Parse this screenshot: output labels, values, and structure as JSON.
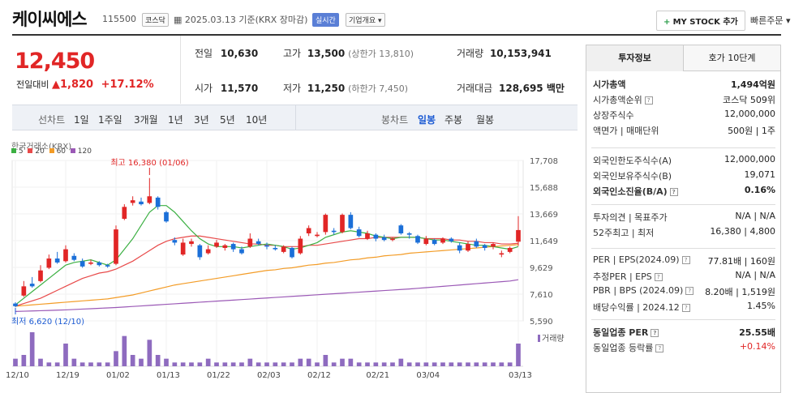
{
  "header": {
    "title": "케이씨에스",
    "code": "115500",
    "market": "코스닥",
    "date_label": "2025.03.13 기준(KRX 장마감)",
    "realtime": "실시간",
    "overview": "기업개요",
    "mystock": "MY STOCK 추가",
    "quick_order": "빠른주문"
  },
  "quote": {
    "price": "12,450",
    "change_label": "전일대비",
    "change": "1,820",
    "change_pct": "+17.12%",
    "prev_label": "전일",
    "prev": "10,630",
    "high_label": "고가",
    "high": "13,500",
    "upper_limit": "(상한가 13,810)",
    "volume_label": "거래량",
    "volume": "10,153,941",
    "open_label": "시가",
    "open": "11,570",
    "low_label": "저가",
    "low": "11,250",
    "lower_limit": "(하한가 7,450)",
    "amount_label": "거래대금",
    "amount": "128,695 백만"
  },
  "periods": {
    "line_label": "선차트",
    "line": [
      "1일",
      "1주일",
      "3개월",
      "1년",
      "3년",
      "5년",
      "10년"
    ],
    "candle_label": "봉차트",
    "candle": [
      "일봉",
      "주봉",
      "월봉"
    ],
    "active_candle": "일봉"
  },
  "chart_legend": {
    "source": "한국거래소(KRX)",
    "ma": [
      "5",
      "20",
      "60",
      "120"
    ],
    "ma_colors": [
      "#3cb043",
      "#e84a4a",
      "#f39c27",
      "#9b59b6"
    ],
    "volume_label": "거래량"
  },
  "chart_data": {
    "type": "candlestick",
    "y_ticks": [
      "17,708",
      "15,688",
      "13,669",
      "11,649",
      "9,629",
      "7,610",
      "5,590"
    ],
    "ylim": [
      5590,
      17708
    ],
    "x_ticks": [
      "12/10",
      "12/19",
      "01/02",
      "01/13",
      "01/22",
      "02/03",
      "02/12",
      "02/21",
      "03/04",
      "03/13"
    ],
    "annotations": {
      "high": "최고 16,380 (01/06)",
      "low": "최저 6,620 (12/10)"
    },
    "candles": [
      {
        "o": 6900,
        "c": 6700,
        "h": 7000,
        "l": 6620
      },
      {
        "o": 7500,
        "c": 8200,
        "h": 8600,
        "l": 7400
      },
      {
        "o": 8400,
        "c": 8200,
        "h": 8900,
        "l": 8100
      },
      {
        "o": 8600,
        "c": 9400,
        "h": 9800,
        "l": 8500
      },
      {
        "o": 9600,
        "c": 10300,
        "h": 10600,
        "l": 9500
      },
      {
        "o": 10300,
        "c": 10000,
        "h": 10800,
        "l": 9900
      },
      {
        "o": 10100,
        "c": 11000,
        "h": 11300,
        "l": 10000
      },
      {
        "o": 10500,
        "c": 10200,
        "h": 10700,
        "l": 10100
      },
      {
        "o": 10100,
        "c": 9700,
        "h": 10300,
        "l": 9600
      },
      {
        "o": 9900,
        "c": 10000,
        "h": 10200,
        "l": 9800
      },
      {
        "o": 10000,
        "c": 9800,
        "h": 10100,
        "l": 9700
      },
      {
        "o": 9800,
        "c": 9700,
        "h": 9900,
        "l": 9600
      },
      {
        "o": 9900,
        "c": 12500,
        "h": 12800,
        "l": 9800
      },
      {
        "o": 13300,
        "c": 14200,
        "h": 14400,
        "l": 13200
      },
      {
        "o": 14500,
        "c": 14700,
        "h": 15000,
        "l": 14300
      },
      {
        "o": 14600,
        "c": 14400,
        "h": 14900,
        "l": 14300
      },
      {
        "o": 14500,
        "c": 15000,
        "h": 16380,
        "l": 14400
      },
      {
        "o": 14900,
        "c": 14200,
        "h": 15000,
        "l": 14000
      },
      {
        "o": 13800,
        "c": 13100,
        "h": 13900,
        "l": 13000
      },
      {
        "o": 11700,
        "c": 11500,
        "h": 11900,
        "l": 11300
      },
      {
        "o": 10600,
        "c": 11500,
        "h": 11800,
        "l": 10500
      },
      {
        "o": 11400,
        "c": 11600,
        "h": 11800,
        "l": 11200
      },
      {
        "o": 11300,
        "c": 10400,
        "h": 11400,
        "l": 10200
      },
      {
        "o": 10700,
        "c": 11000,
        "h": 11300,
        "l": 10600
      },
      {
        "o": 11200,
        "c": 11500,
        "h": 11700,
        "l": 11100
      },
      {
        "o": 11100,
        "c": 11300,
        "h": 11400,
        "l": 10900
      },
      {
        "o": 11400,
        "c": 11000,
        "h": 11500,
        "l": 10800
      },
      {
        "o": 11000,
        "c": 10700,
        "h": 11200,
        "l": 10600
      },
      {
        "o": 11200,
        "c": 11800,
        "h": 12200,
        "l": 11100
      },
      {
        "o": 11600,
        "c": 11400,
        "h": 11800,
        "l": 11300
      },
      {
        "o": 11300,
        "c": 11200,
        "h": 11500,
        "l": 11000
      },
      {
        "o": 11100,
        "c": 11000,
        "h": 11300,
        "l": 10900
      },
      {
        "o": 10800,
        "c": 11200,
        "h": 11300,
        "l": 10700
      },
      {
        "o": 11100,
        "c": 10400,
        "h": 11200,
        "l": 10300
      },
      {
        "o": 10700,
        "c": 11800,
        "h": 12000,
        "l": 10600
      },
      {
        "o": 12200,
        "c": 12600,
        "h": 12800,
        "l": 12000
      },
      {
        "o": 12000,
        "c": 12100,
        "h": 12300,
        "l": 11900
      },
      {
        "o": 12300,
        "c": 13600,
        "h": 13700,
        "l": 12100
      },
      {
        "o": 12400,
        "c": 12300,
        "h": 12600,
        "l": 12100
      },
      {
        "o": 12300,
        "c": 13600,
        "h": 13700,
        "l": 12200
      },
      {
        "o": 13600,
        "c": 12600,
        "h": 13800,
        "l": 12500
      },
      {
        "o": 12500,
        "c": 12000,
        "h": 12700,
        "l": 11900
      },
      {
        "o": 11800,
        "c": 12200,
        "h": 12400,
        "l": 11700
      },
      {
        "o": 12100,
        "c": 11800,
        "h": 12200,
        "l": 11600
      },
      {
        "o": 11900,
        "c": 11700,
        "h": 12100,
        "l": 11600
      },
      {
        "o": 11700,
        "c": 11800,
        "h": 11900,
        "l": 11600
      },
      {
        "o": 12800,
        "c": 12200,
        "h": 12900,
        "l": 12100
      },
      {
        "o": 12200,
        "c": 12100,
        "h": 12300,
        "l": 11800
      },
      {
        "o": 12000,
        "c": 11500,
        "h": 12100,
        "l": 11400
      },
      {
        "o": 11400,
        "c": 11800,
        "h": 12000,
        "l": 11300
      },
      {
        "o": 11700,
        "c": 11400,
        "h": 11800,
        "l": 11300
      },
      {
        "o": 11500,
        "c": 11800,
        "h": 11900,
        "l": 11400
      },
      {
        "o": 11800,
        "c": 11600,
        "h": 11900,
        "l": 11500
      },
      {
        "o": 11300,
        "c": 10900,
        "h": 11500,
        "l": 10700
      },
      {
        "o": 10900,
        "c": 11400,
        "h": 11600,
        "l": 10800
      },
      {
        "o": 11600,
        "c": 11200,
        "h": 11800,
        "l": 11100
      },
      {
        "o": 11300,
        "c": 11100,
        "h": 11400,
        "l": 10900
      },
      {
        "o": 11200,
        "c": 11400,
        "h": 11500,
        "l": 11000
      },
      {
        "o": 10600,
        "c": 10700,
        "h": 10900,
        "l": 10400
      },
      {
        "o": 10800,
        "c": 11100,
        "h": 11200,
        "l": 10700
      },
      {
        "o": 11570,
        "c": 12450,
        "h": 13500,
        "l": 11250
      }
    ],
    "ma5": [
      6800,
      7300,
      7800,
      8300,
      8800,
      9300,
      9800,
      10000,
      10100,
      10200,
      10000,
      9800,
      10200,
      11000,
      11800,
      12800,
      13800,
      14300,
      14300,
      13800,
      13100,
      12400,
      11800,
      11400,
      11200,
      11200,
      11200,
      11100,
      11200,
      11300,
      11400,
      11300,
      11200,
      11000,
      11100,
      11300,
      11500,
      11900,
      12100,
      12300,
      12400,
      12300,
      12200,
      12000,
      11900,
      11800,
      11900,
      11900,
      11900,
      11800,
      11700,
      11700,
      11600,
      11500,
      11400,
      11300,
      11300,
      11200,
      11100,
      11000,
      11200
    ],
    "ma20": [
      6700,
      6900,
      7100,
      7300,
      7600,
      7900,
      8200,
      8500,
      8800,
      9000,
      9200,
      9300,
      9500,
      9800,
      10100,
      10500,
      10900,
      11300,
      11600,
      11800,
      11900,
      12000,
      12000,
      11900,
      11800,
      11700,
      11600,
      11500,
      11400,
      11400,
      11300,
      11300,
      11200,
      11200,
      11200,
      11300,
      11300,
      11400,
      11500,
      11600,
      11700,
      11800,
      11800,
      11900,
      11900,
      11900,
      11900,
      11900,
      11900,
      11800,
      11800,
      11800,
      11700,
      11700,
      11600,
      11600,
      11500,
      11500,
      11400,
      11400,
      11450
    ],
    "ma60": [
      6700,
      6750,
      6800,
      6850,
      6900,
      6950,
      7000,
      7050,
      7100,
      7150,
      7200,
      7250,
      7350,
      7450,
      7550,
      7700,
      7850,
      8000,
      8150,
      8300,
      8400,
      8500,
      8600,
      8700,
      8800,
      8900,
      9000,
      9100,
      9200,
      9300,
      9400,
      9450,
      9550,
      9600,
      9700,
      9800,
      9850,
      9950,
      10000,
      10100,
      10200,
      10250,
      10350,
      10400,
      10500,
      10550,
      10600,
      10700,
      10750,
      10800,
      10850,
      10900,
      10950,
      11000,
      11050,
      11100,
      11150,
      11200,
      11250,
      11300,
      11350
    ],
    "ma120": [
      6300,
      6320,
      6340,
      6360,
      6380,
      6400,
      6420,
      6450,
      6480,
      6510,
      6540,
      6570,
      6600,
      6640,
      6680,
      6720,
      6760,
      6800,
      6840,
      6880,
      6920,
      6960,
      7000,
      7040,
      7080,
      7120,
      7160,
      7200,
      7240,
      7280,
      7320,
      7360,
      7400,
      7440,
      7480,
      7520,
      7560,
      7600,
      7640,
      7680,
      7720,
      7760,
      7800,
      7840,
      7880,
      7920,
      7960,
      8000,
      8050,
      8100,
      8150,
      8200,
      8250,
      8300,
      8350,
      8400,
      8450,
      8500,
      8550,
      8600,
      8700
    ],
    "volume": [
      2,
      3,
      9,
      2,
      1,
      1,
      6,
      2,
      1,
      1,
      1,
      1,
      4,
      8,
      3,
      2,
      7,
      3,
      2,
      1,
      1,
      1,
      1,
      2,
      1,
      1,
      1,
      1,
      2,
      1,
      1,
      1,
      1,
      1,
      2,
      2,
      1,
      3,
      1,
      2,
      2,
      1,
      1,
      1,
      1,
      1,
      2,
      1,
      1,
      1,
      1,
      1,
      1,
      1,
      1,
      1,
      1,
      1,
      1,
      1,
      6
    ]
  },
  "panel": {
    "tab_active": "투자정보",
    "tab_other": "호가 10단계",
    "rows1": [
      {
        "l": "시가총액",
        "r": "1,494억원",
        "bold": true
      },
      {
        "l": "시가총액순위",
        "r": "코스닥 509위"
      },
      {
        "l": "상장주식수",
        "r": "12,000,000"
      },
      {
        "l": "액면가 | 매매단위",
        "r": "500원 | 1주"
      }
    ],
    "rows2": [
      {
        "l": "외국인한도주식수(A)",
        "r": "12,000,000"
      },
      {
        "l": "외국인보유주식수(B)",
        "r": "19,071"
      },
      {
        "l": "외국인소진율(B/A)",
        "r": "0.16%",
        "bold": true
      }
    ],
    "rows3": [
      {
        "l": "투자의견 | 목표주가",
        "r": "N/A | N/A"
      },
      {
        "l": "52주최고 | 최저",
        "r": "16,380 | 4,800"
      }
    ],
    "rows4": [
      {
        "l": "PER | EPS(2024.09)",
        "r": "77.81배 | 160원"
      },
      {
        "l": "추정PER | EPS",
        "r": "N/A | N/A"
      },
      {
        "l": "PBR | BPS (2024.09)",
        "r": "8.20배 | 1,519원"
      },
      {
        "l": "배당수익률 | 2024.12",
        "r": "1.45%"
      }
    ],
    "rows5": [
      {
        "l": "동일업종 PER",
        "r": "25.55배",
        "bold": true
      },
      {
        "l": "동일업종 등락률",
        "r": "+0.14%",
        "red": true
      }
    ]
  }
}
